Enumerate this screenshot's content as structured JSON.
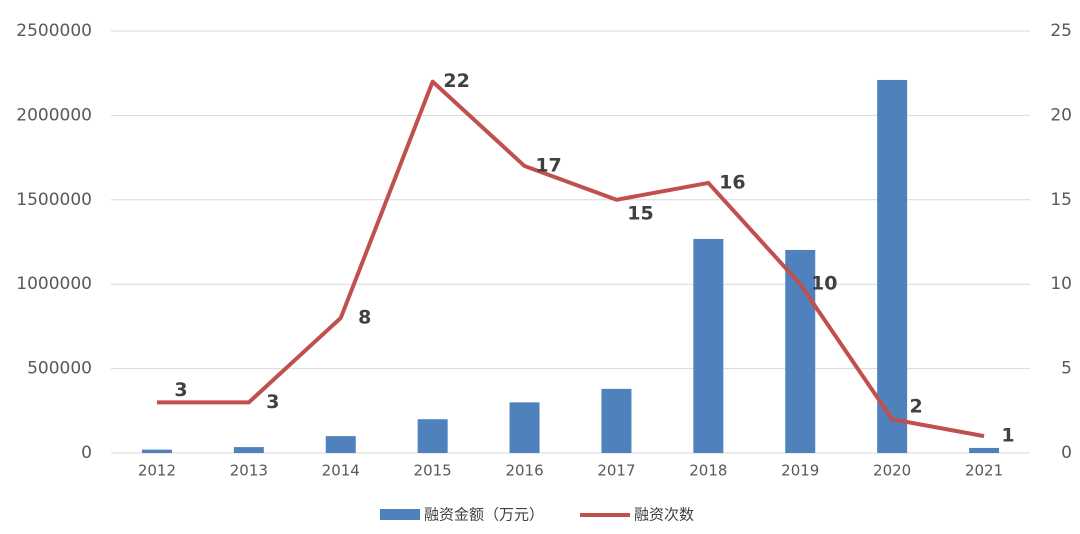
{
  "chart_data": {
    "type": "bar-line",
    "categories": [
      "2012",
      "2013",
      "2014",
      "2015",
      "2016",
      "2017",
      "2018",
      "2019",
      "2020",
      "2021"
    ],
    "series": [
      {
        "name": "融资金额（万元）",
        "type": "bar",
        "color": "#4f81bd",
        "values": [
          20000,
          35000,
          100000,
          200000,
          300000,
          380000,
          1268000,
          1203000,
          2210000,
          30000
        ]
      },
      {
        "name": "融资次数",
        "type": "line",
        "axis": "y2",
        "color": "#c0504d",
        "values": [
          3,
          3,
          8,
          22,
          17,
          15,
          16,
          10,
          2,
          1
        ],
        "data_labels": true
      }
    ],
    "ylim": [
      0,
      2500000
    ],
    "yticks": [
      0,
      500000,
      1000000,
      1500000,
      2000000,
      2500000
    ],
    "y2lim": [
      0,
      25
    ],
    "y2ticks": [
      0,
      5,
      10,
      15,
      20,
      25
    ],
    "grid": true,
    "legend": "bottom"
  }
}
